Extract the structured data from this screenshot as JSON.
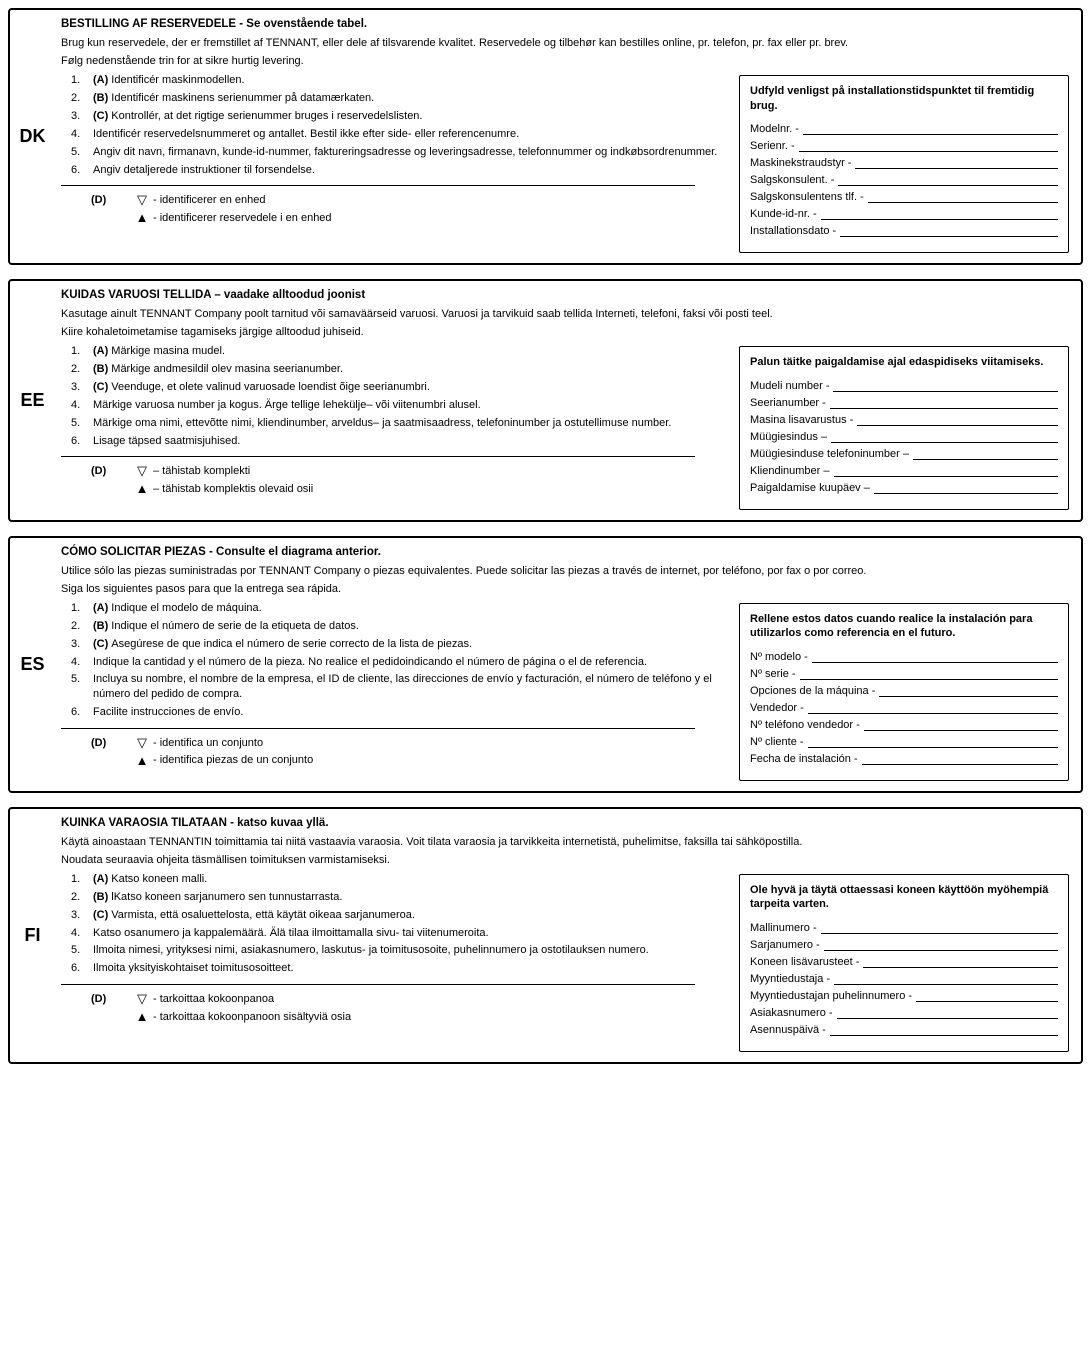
{
  "sections": [
    {
      "code": "DK",
      "heading": "BESTILLING AF RESERVEDELE - Se ovenstående tabel.",
      "intro": "Brug kun reservedele, der er fremstillet af TENNANT, eller dele af tilsvarende kvalitet. Reservedele og tilbehør kan bestilles online, pr. telefon, pr. fax eller pr. brev.",
      "follow": "Følg nedenstående trin for at sikre hurtig levering.",
      "steps": [
        {
          "n": "1.",
          "letter": "(A)",
          "text": "Identificér maskinmodellen."
        },
        {
          "n": "2.",
          "letter": "(B)",
          "text": "Identificér maskinens serienummer på datamærkaten."
        },
        {
          "n": "3.",
          "letter": "(C)",
          "text": "Kontrollér, at det rigtige serienummer bruges i reservedelslisten."
        },
        {
          "n": "4.",
          "letter": "",
          "text": "Identificér reservedelsnummeret og antallet. Bestil ikke efter side- eller referencenumre."
        },
        {
          "n": "5.",
          "letter": "",
          "text": "Angiv dit navn, firmanavn, kunde-id-nummer, faktureringsadresse og leveringsadresse, telefonnummer og indkøbsordrenummer."
        },
        {
          "n": "6.",
          "letter": "",
          "text": "Angiv detaljerede instruktioner til forsendelse."
        }
      ],
      "legend_d": "(D)",
      "legend_down": "- identificerer en enhed",
      "legend_up": "- identificerer reservedele i en enhed",
      "form_heading": "Udfyld venligst på installationstidspunktet til fremtidig brug.",
      "fields": [
        "Modelnr. -",
        "Serienr. -",
        "Maskinekstraudstyr -",
        "Salgskonsulent.  -",
        "Salgskonsulentens tlf. -",
        "Kunde-id-nr. -",
        "Installationsdato -"
      ]
    },
    {
      "code": "EE",
      "heading": "KUIDAS VARUOSI TELLIDA – vaadake alltoodud joonist",
      "intro": "Kasutage ainult TENNANT Company poolt tarnitud või samaväärseid varuosi. Varuosi ja tarvikuid saab tellida Interneti, telefoni, faksi või posti teel.",
      "follow": "Kiire kohaletoimetamise tagamiseks järgige alltoodud juhiseid.",
      "steps": [
        {
          "n": "1.",
          "letter": "(A)",
          "text": "Märkige masina mudel."
        },
        {
          "n": "2.",
          "letter": "(B)",
          "text": "Märkige andmesildil olev masina seerianumber."
        },
        {
          "n": "3.",
          "letter": "(C)",
          "text": "Veenduge, et olete valinud varuosade loendist õige seerianumbri."
        },
        {
          "n": "4.",
          "letter": "",
          "text": "Märkige varuosa number ja kogus. Ärge tellige lehekülje– või viitenumbri alusel."
        },
        {
          "n": "5.",
          "letter": "",
          "text": "Märkige oma nimi, ettevõtte nimi, kliendinumber, arveldus– ja saatmisaadress, telefoninumber ja ostutellimuse number."
        },
        {
          "n": "6.",
          "letter": "",
          "text": "Lisage täpsed saatmisjuhised."
        }
      ],
      "legend_d": "(D)",
      "legend_down": "– tähistab komplekti",
      "legend_up": "– tähistab komplektis olevaid osii",
      "form_heading": "Palun täitke paigaldamise ajal edaspidiseks viitamiseks.",
      "fields": [
        "Mudeli number -",
        "Seerianumber -",
        "Masina lisavarustus -",
        "Müügiesindus –",
        "Müügiesinduse telefoninumber –",
        "Kliendinumber –",
        "Paigaldamise kuupäev –"
      ]
    },
    {
      "code": "ES",
      "heading": "CÓMO SOLICITAR PIEZAS - Consulte el diagrama anterior.",
      "intro": "Utilice sólo las piezas suministradas por TENNANT Company o piezas equivalentes. Puede solicitar las piezas a través de internet, por teléfono, por fax o por correo.",
      "follow": "Siga los siguientes pasos para que la entrega sea rápida.",
      "steps": [
        {
          "n": "1.",
          "letter": "(A)",
          "text": "Indique el modelo de máquina."
        },
        {
          "n": "2.",
          "letter": "(B)",
          "text": "Indique el número de serie de la etiqueta de datos."
        },
        {
          "n": "3.",
          "letter": "(C)",
          "text": "Asegúrese de que indica el número de serie correcto de la lista de piezas."
        },
        {
          "n": "4.",
          "letter": "",
          "text": "Indique la cantidad y el número de la pieza. No realice el pedidoindicando el número de página o el de referencia."
        },
        {
          "n": "5.",
          "letter": "",
          "text": "Incluya su nombre, el nombre de la empresa, el ID de cliente, las direcciones de envío y facturación, el número de teléfono y el número del pedido de compra."
        },
        {
          "n": "6.",
          "letter": "",
          "text": "Facilite instrucciones de envío."
        }
      ],
      "legend_d": "(D)",
      "legend_down": "- identifica un conjunto",
      "legend_up": "- identifica piezas de un conjunto",
      "form_heading": "Rellene estos datos cuando realice la instalación para utilizarlos como referencia en el futuro.",
      "fields": [
        "Nº modelo -",
        "Nº serie -",
        "Opciones de la máquina -",
        "Vendedor -",
        "Nº teléfono vendedor -",
        "Nº cliente -",
        "Fecha de instalación -"
      ]
    },
    {
      "code": "FI",
      "heading": "KUINKA VARAOSIA TILATAAN - katso kuvaa yllä.",
      "intro": "Käytä ainoastaan TENNANTIN toimittamia tai niitä vastaavia varaosia. Voit tilata varaosia ja tarvikkeita internetistä, puhelimitse, faksilla tai sähköpostilla.",
      "follow": "Noudata seuraavia ohjeita täsmällisen toimituksen varmistamiseksi.",
      "steps": [
        {
          "n": "1.",
          "letter": "(A)",
          "text": "Katso koneen malli."
        },
        {
          "n": "2.",
          "letter": "(B)",
          "text": "lKatso koneen sarjanumero sen tunnustarrasta."
        },
        {
          "n": "3.",
          "letter": "(C)",
          "text": "Varmista, että osaluettelosta, että käytät oikeaa sarjanumeroa."
        },
        {
          "n": "4.",
          "letter": "",
          "text": "Katso osanumero ja kappalemäärä. Älä tilaa ilmoittamalla sivu- tai viitenumeroita."
        },
        {
          "n": "5.",
          "letter": "",
          "text": "Ilmoita nimesi, yrityksesi nimi, asiakasnumero, laskutus- ja toimitusosoite, puhelinnumero ja ostotilauksen numero."
        },
        {
          "n": "6.",
          "letter": "",
          "text": "Ilmoita yksityiskohtaiset toimitusosoitteet."
        }
      ],
      "legend_d": "(D)",
      "legend_down": "- tarkoittaa kokoonpanoa",
      "legend_up": "- tarkoittaa kokoonpanoon sisältyviä osia",
      "form_heading": "Ole hyvä ja täytä ottaessasi koneen käyttöön myöhempiä tarpeita varten.",
      "fields": [
        "Mallinumero -",
        "Sarjanumero -",
        "Koneen lisävarusteet -",
        "Myyntiedustaja -",
        "Myyntiedustajan puhelinnumero -",
        "Asiakasnumero -",
        "Asennuspäivä -"
      ]
    }
  ]
}
